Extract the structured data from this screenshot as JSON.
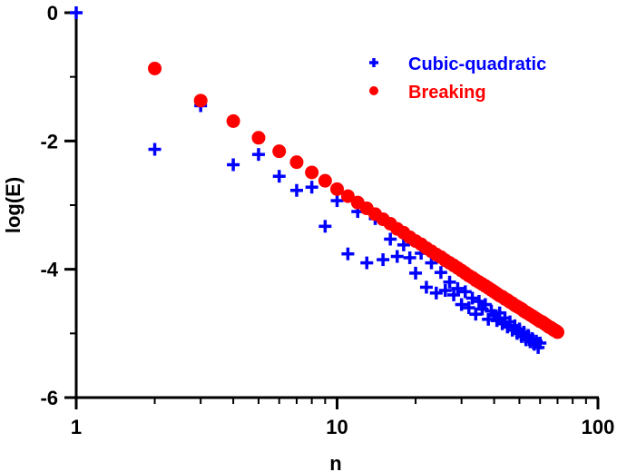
{
  "chart_data": {
    "type": "scatter",
    "title": "",
    "xlabel": "n",
    "ylabel": "log(E)",
    "xscale": "log",
    "xlim": [
      1,
      100
    ],
    "ylim": [
      -6,
      0
    ],
    "x_ticks": [
      1,
      10,
      100
    ],
    "x_tick_labels": [
      "1",
      "10",
      "100"
    ],
    "y_ticks": [
      0,
      -2,
      -4,
      -6
    ],
    "y_tick_labels": [
      "0",
      "-2",
      "-4",
      "-6"
    ],
    "legend_position": "top-right",
    "grid": false,
    "series": [
      {
        "name": "Cubic-quadratic",
        "marker": "plus",
        "color": "#0000ff",
        "x": [
          1,
          2,
          3,
          4,
          5,
          6,
          7,
          8,
          9,
          10,
          11,
          12,
          13,
          14,
          15,
          16,
          17,
          18,
          19,
          20,
          21,
          22,
          23,
          24,
          25,
          26,
          27,
          28,
          29,
          30,
          31,
          32,
          33,
          34,
          35,
          36,
          37,
          38,
          39,
          40,
          41,
          42,
          43,
          44,
          45,
          46,
          47,
          48,
          49,
          50,
          51,
          52,
          53,
          54,
          55,
          56,
          57,
          58,
          59,
          60
        ],
        "y": [
          0,
          -2.13,
          -1.45,
          -2.37,
          -2.21,
          -2.55,
          -2.77,
          -2.72,
          -3.33,
          -2.93,
          -3.76,
          -3.1,
          -3.9,
          -3.21,
          -3.85,
          -3.53,
          -3.8,
          -3.62,
          -3.82,
          -4.06,
          -3.75,
          -4.28,
          -3.9,
          -4.37,
          -4.05,
          -4.33,
          -4.2,
          -4.4,
          -4.3,
          -4.55,
          -4.35,
          -4.6,
          -4.45,
          -4.7,
          -4.5,
          -4.62,
          -4.55,
          -4.78,
          -4.65,
          -4.72,
          -4.8,
          -4.68,
          -4.85,
          -4.76,
          -4.9,
          -4.82,
          -4.95,
          -4.88,
          -5.0,
          -4.93,
          -5.05,
          -4.98,
          -5.1,
          -5.03,
          -5.13,
          -5.08,
          -5.17,
          -5.12,
          -5.22,
          -5.15
        ]
      },
      {
        "name": "Breaking",
        "marker": "circle",
        "color": "#ff0000",
        "x": [
          2,
          3,
          4,
          5,
          6,
          7,
          8,
          9,
          10,
          11,
          12,
          13,
          14,
          15,
          16,
          17,
          18,
          19,
          20,
          21,
          22,
          23,
          24,
          25,
          26,
          27,
          28,
          29,
          30,
          31,
          32,
          33,
          34,
          35,
          36,
          37,
          38,
          39,
          40,
          41,
          42,
          43,
          44,
          45,
          46,
          47,
          48,
          49,
          50,
          51,
          52,
          53,
          54,
          55,
          56,
          57,
          58,
          59,
          60,
          61,
          62,
          63,
          64,
          65,
          66,
          67,
          68,
          69,
          70
        ],
        "y": [
          -0.87,
          -1.37,
          -1.69,
          -1.95,
          -2.16,
          -2.33,
          -2.49,
          -2.62,
          -2.75,
          -2.86,
          -2.96,
          -3.05,
          -3.14,
          -3.22,
          -3.29,
          -3.37,
          -3.43,
          -3.5,
          -3.56,
          -3.61,
          -3.67,
          -3.72,
          -3.77,
          -3.81,
          -3.86,
          -3.9,
          -3.94,
          -3.98,
          -4.02,
          -4.06,
          -4.1,
          -4.13,
          -4.17,
          -4.2,
          -4.23,
          -4.26,
          -4.29,
          -4.32,
          -4.35,
          -4.38,
          -4.41,
          -4.43,
          -4.46,
          -4.48,
          -4.51,
          -4.53,
          -4.56,
          -4.58,
          -4.6,
          -4.62,
          -4.65,
          -4.67,
          -4.69,
          -4.71,
          -4.73,
          -4.75,
          -4.77,
          -4.79,
          -4.81,
          -4.82,
          -4.84,
          -4.86,
          -4.88,
          -4.9,
          -4.91,
          -4.93,
          -4.95,
          -4.96,
          -4.98
        ]
      }
    ]
  }
}
